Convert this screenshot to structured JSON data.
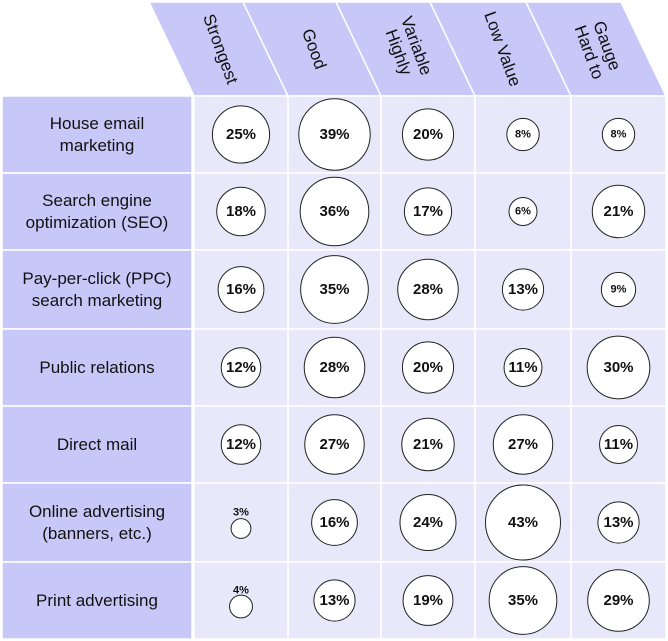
{
  "chart_data": {
    "type": "bubble-matrix",
    "title": "",
    "columns": [
      {
        "label": "Strongest",
        "lines": [
          "Strongest"
        ]
      },
      {
        "label": "Good",
        "lines": [
          "Good"
        ]
      },
      {
        "label": "Highly Variable",
        "lines": [
          "Highly",
          "Variable"
        ]
      },
      {
        "label": "Low Value",
        "lines": [
          "Low Value"
        ]
      },
      {
        "label": "Hard to Gauge",
        "lines": [
          "Hard to",
          "Gauge"
        ]
      }
    ],
    "rows": [
      {
        "label": "House email marketing",
        "lines": [
          "House email",
          "marketing"
        ],
        "values": [
          25,
          39,
          20,
          8,
          8
        ],
        "value_labels": [
          "25%",
          "39%",
          "20%",
          "8%",
          "8%"
        ]
      },
      {
        "label": "Search engine optimization (SEO)",
        "lines": [
          "Search engine",
          "optimization (SEO)"
        ],
        "values": [
          18,
          36,
          17,
          6,
          21
        ],
        "value_labels": [
          "18%",
          "36%",
          "17%",
          "6%",
          "21%"
        ]
      },
      {
        "label": "Pay-per-click (PPC) search marketing",
        "lines": [
          "Pay-per-click (PPC)",
          "search marketing"
        ],
        "values": [
          16,
          35,
          28,
          13,
          9
        ],
        "value_labels": [
          "16%",
          "35%",
          "28%",
          "13%",
          "9%"
        ]
      },
      {
        "label": "Public relations",
        "lines": [
          "Public relations"
        ],
        "values": [
          12,
          28,
          20,
          11,
          30
        ],
        "value_labels": [
          "12%",
          "28%",
          "20%",
          "11%",
          "30%"
        ]
      },
      {
        "label": "Direct mail",
        "lines": [
          "Direct mail"
        ],
        "values": [
          12,
          27,
          21,
          27,
          11
        ],
        "value_labels": [
          "12%",
          "27%",
          "21%",
          "27%",
          "11%"
        ]
      },
      {
        "label": "Online advertising (banners, etc.)",
        "lines": [
          "Online advertising",
          "(banners, etc.)"
        ],
        "values": [
          3,
          16,
          24,
          43,
          13
        ],
        "value_labels": [
          "3%",
          "16%",
          "24%",
          "43%",
          "13%"
        ]
      },
      {
        "label": "Print advertising",
        "lines": [
          "Print advertising"
        ],
        "values": [
          4,
          13,
          19,
          35,
          29
        ],
        "value_labels": [
          "4%",
          "13%",
          "19%",
          "35%",
          "29%"
        ]
      }
    ],
    "colors": {
      "row_header": "#c8c8f8",
      "column_header": "#c8c8f8",
      "cell": "#e8e8fa",
      "bubble_fill": "#ffffff",
      "bubble_stroke": "#222222",
      "grid_line": "#ffffff"
    }
  }
}
